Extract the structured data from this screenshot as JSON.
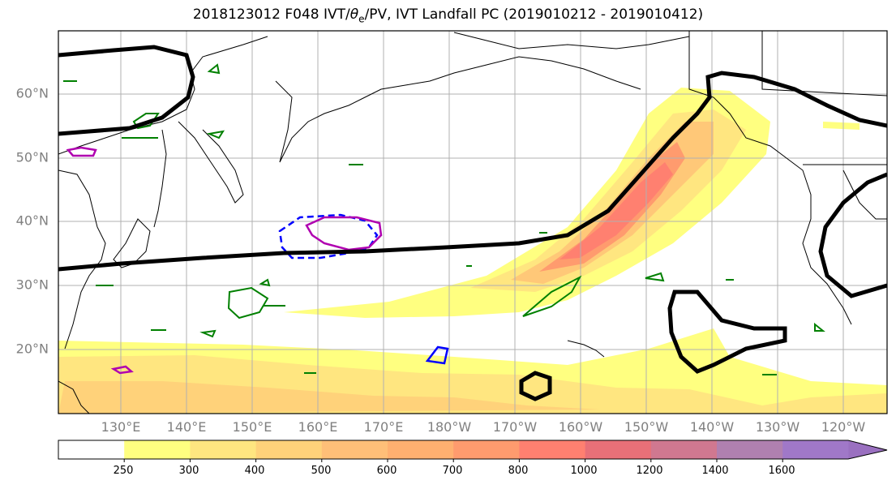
{
  "title": {
    "prefix": "2018123012 F048 IVT/",
    "theta": "θ",
    "theta_sub": "e",
    "suffix": "/PV, IVT Landfall PC (2019010212 - 2019010412)"
  },
  "map": {
    "lat_labels": [
      "60°N",
      "50°N",
      "40°N",
      "30°N",
      "20°N"
    ],
    "lon_labels": [
      "130°E",
      "140°E",
      "150°E",
      "160°E",
      "170°E",
      "180°W",
      "170°W",
      "160°W",
      "150°W",
      "140°W",
      "130°W",
      "120°W"
    ],
    "colors": {
      "coast": "#000000",
      "pc_contour": "#000000",
      "pv_pos": "#008000",
      "pv_neg": "#0000ff",
      "theta": "#b000b0"
    }
  },
  "colorbar": {
    "ticks": [
      "250",
      "300",
      "400",
      "500",
      "600",
      "700",
      "800",
      "1000",
      "1200",
      "1400",
      "1600"
    ],
    "colors": [
      "#ffffff",
      "#ffff80",
      "#ffe680",
      "#ffd27a",
      "#ffbf78",
      "#ffb070",
      "#ff9b6e",
      "#ff8070",
      "#e87078",
      "#d07890",
      "#b080b0",
      "#a078c8",
      "#9a70c0"
    ]
  }
}
